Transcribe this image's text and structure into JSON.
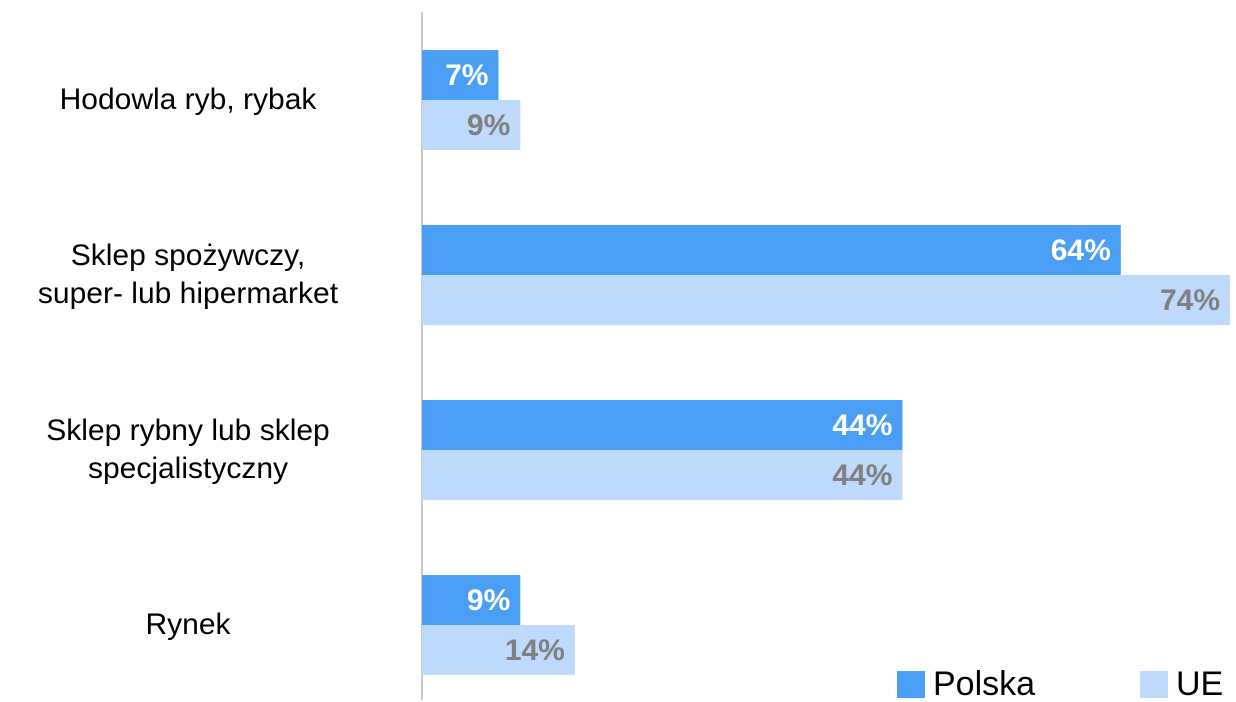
{
  "chart_data": {
    "type": "barh",
    "categories": [
      "Hodowla ryb, rybak",
      "Sklep spożywczy,\nsuper- lub hipermarket",
      "Sklep rybny lub sklep\nspecjalistyczny",
      "Rynek"
    ],
    "series": [
      {
        "name": "Polska",
        "color": "#4a9ff5",
        "label_color": "#ffffff",
        "values": [
          7,
          64,
          44,
          9
        ],
        "value_labels": [
          "7%",
          "64%",
          "44%",
          "9%"
        ]
      },
      {
        "name": "UE",
        "color": "#bdd9fb",
        "label_color": "#808080",
        "values": [
          9,
          74,
          44,
          14
        ],
        "value_labels": [
          "9%",
          "74%",
          "44%",
          "14%"
        ]
      }
    ],
    "xlim": [
      0,
      74
    ],
    "legend": "bottom-right"
  }
}
